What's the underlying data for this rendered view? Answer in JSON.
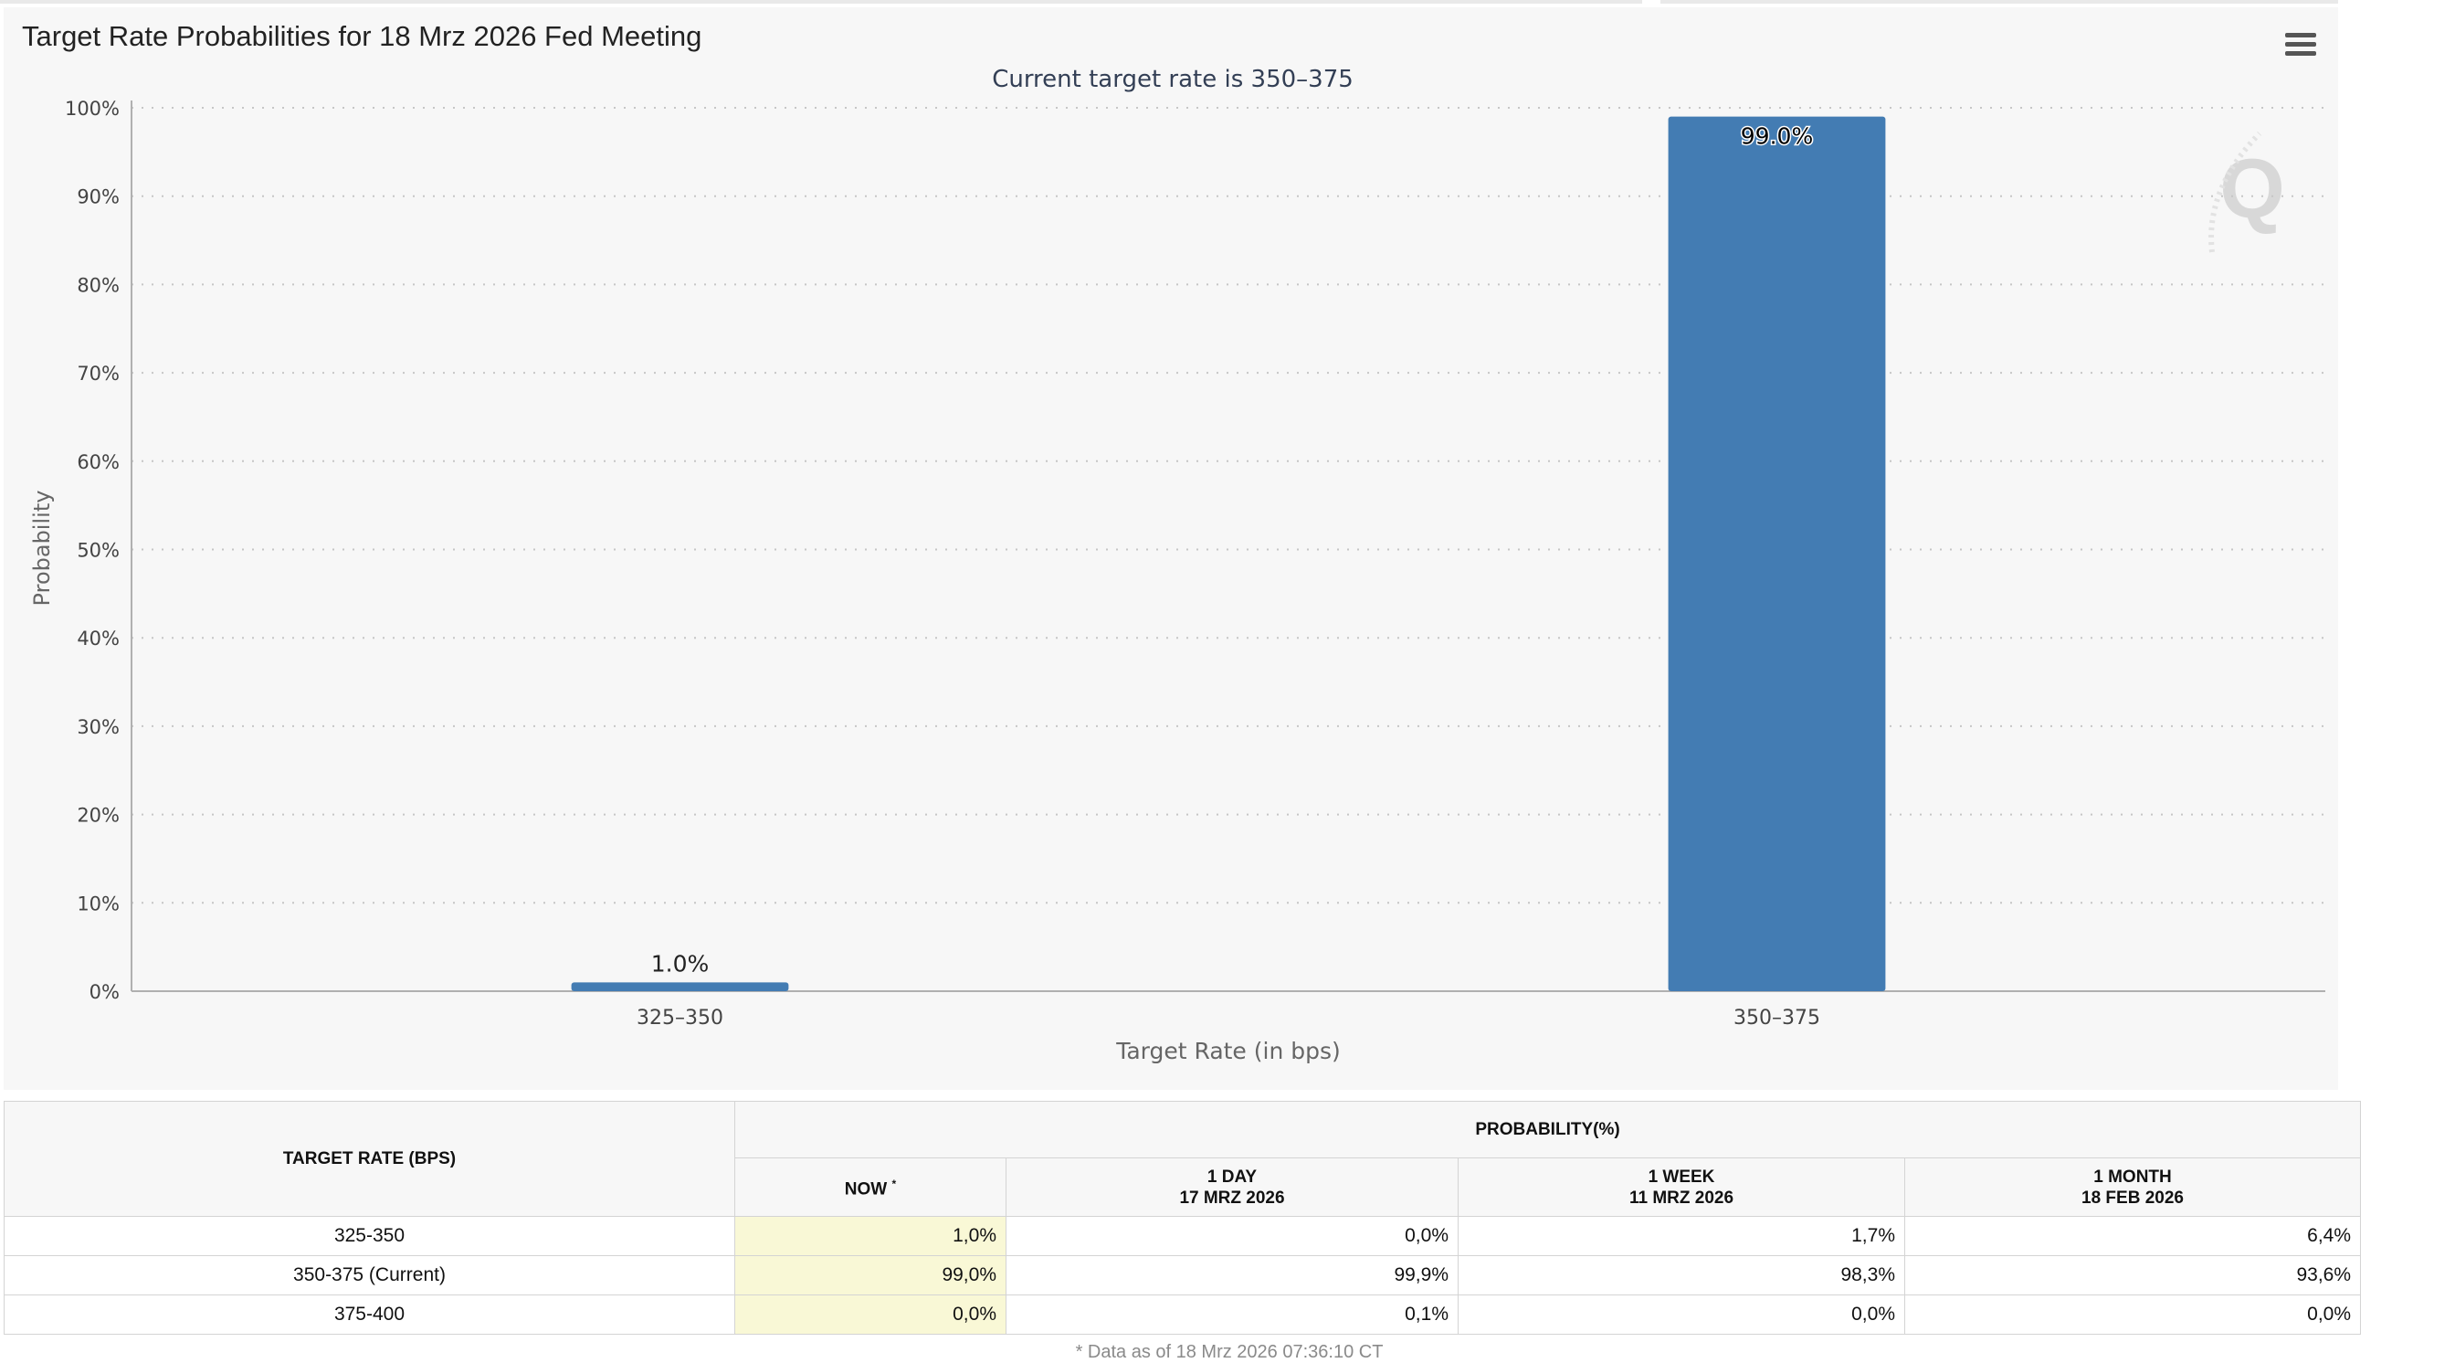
{
  "title": "Target Rate Probabilities for 18 Mrz 2026 Fed Meeting",
  "menu_icon": "hamburger-menu-icon",
  "watermark_icon": "q-logo-watermark",
  "colors": {
    "bar": "#437cb3",
    "now_column": "#f9f8d6",
    "panel": "#f7f7f7"
  },
  "chart_data": {
    "type": "bar",
    "title": "Current target rate is 350–375",
    "xlabel": "Target Rate (in bps)",
    "ylabel": "Probability",
    "categories": [
      "325–350",
      "350–375"
    ],
    "values": [
      1.0,
      99.0
    ],
    "data_labels": [
      "1.0%",
      "99.0%"
    ],
    "ylim": [
      0,
      100
    ],
    "yticks": [
      "0%",
      "10%",
      "20%",
      "30%",
      "40%",
      "50%",
      "60%",
      "70%",
      "80%",
      "90%",
      "100%"
    ],
    "grid": "horizontal dotted",
    "legend": "none"
  },
  "table": {
    "col_target": "TARGET RATE (BPS)",
    "col_group": "PROBABILITY(%)",
    "col_now": "NOW",
    "col_now_mark": "*",
    "col_day": "1 DAY",
    "col_day_date": "17 MRZ 2026",
    "col_week": "1 WEEK",
    "col_week_date": "11 MRZ 2026",
    "col_month": "1 MONTH",
    "col_month_date": "18 FEB 2026",
    "rows": [
      {
        "rate": "325-350",
        "now": "1,0%",
        "day": "0,0%",
        "week": "1,7%",
        "month": "6,4%"
      },
      {
        "rate": "350-375 (Current)",
        "now": "99,0%",
        "day": "99,9%",
        "week": "98,3%",
        "month": "93,6%"
      },
      {
        "rate": "375-400",
        "now": "0,0%",
        "day": "0,1%",
        "week": "0,0%",
        "month": "0,0%"
      }
    ],
    "footnote": "* Data as of 18 Mrz 2026 07:36:10 CT"
  }
}
